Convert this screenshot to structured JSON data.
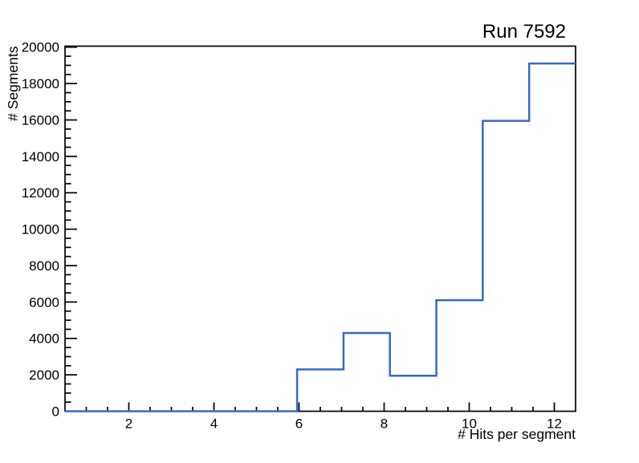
{
  "chart_data": {
    "type": "line",
    "subtype": "step-histogram",
    "title": "Run 7592",
    "xlabel": "# Hits per segment",
    "ylabel": "# Segments",
    "xlim": [
      0.5,
      12.5
    ],
    "ylim": [
      0,
      20055
    ],
    "grid": false,
    "legend": null,
    "line_color": "#3a68c8",
    "axis_color": "#000000",
    "background_color": "#ffffff",
    "bin_edges": [
      0.5,
      1.5909,
      2.6818,
      3.7727,
      4.8636,
      5.9545,
      7.0455,
      8.1364,
      9.2273,
      10.3182,
      11.4091,
      12.5
    ],
    "counts": [
      0,
      0,
      0,
      0,
      0,
      2300,
      4300,
      1950,
      6100,
      15950,
      19100
    ],
    "x_major_ticks": [
      2,
      4,
      6,
      8,
      10,
      12
    ],
    "x_minor_step": 0.5,
    "y_major_ticks": [
      0,
      2000,
      4000,
      6000,
      8000,
      10000,
      12000,
      14000,
      16000,
      18000,
      20000
    ],
    "y_minor_step": 500
  }
}
